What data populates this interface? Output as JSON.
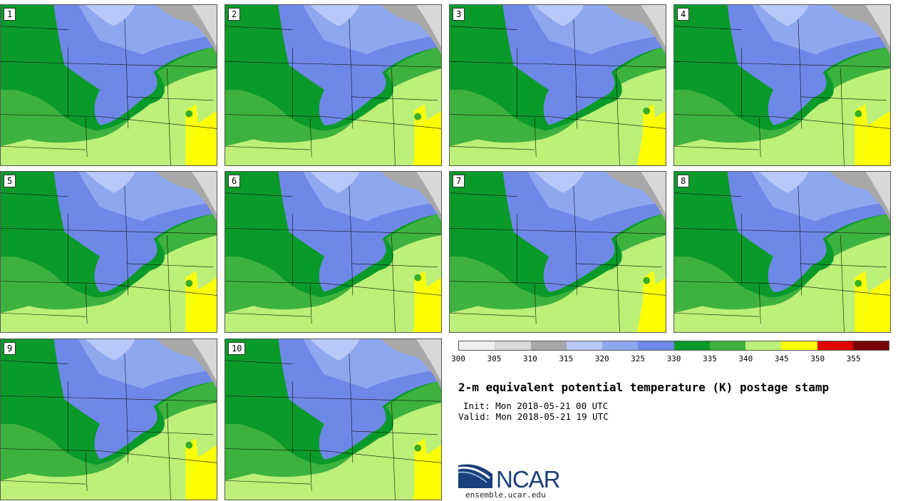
{
  "members": [
    "1",
    "2",
    "3",
    "4",
    "5",
    "6",
    "7",
    "8",
    "9",
    "10"
  ],
  "colorbar": {
    "colors": [
      "#f0f0f0",
      "#d8d8d8",
      "#a8a8a8",
      "#b8c8f8",
      "#8ea8f0",
      "#6e88e8",
      "#0a9a2a",
      "#3eb23e",
      "#bcf078",
      "#ffff00",
      "#e00000",
      "#7a0000"
    ],
    "ticks": [
      "300",
      "305",
      "310",
      "315",
      "320",
      "325",
      "330",
      "335",
      "340",
      "345",
      "350",
      "355"
    ]
  },
  "title": "2-m equivalent potential temperature (K) postage stamp",
  "init": "Init: Mon 2018-05-21 00 UTC",
  "valid": "Valid: Mon 2018-05-21 19 UTC",
  "logo": {
    "name": "NCAR",
    "site": "ensemble.ucar.edu"
  }
}
